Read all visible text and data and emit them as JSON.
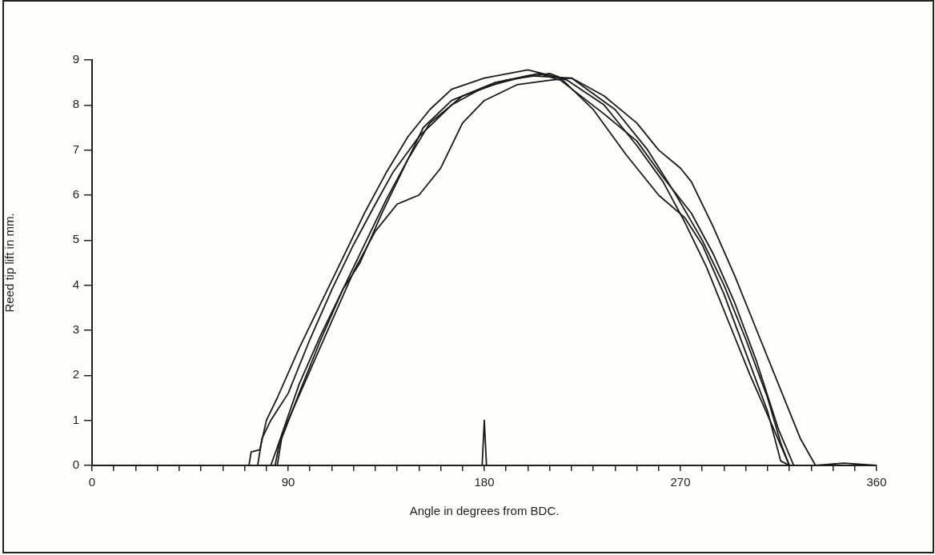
{
  "chart_data": {
    "type": "line",
    "xlabel": "Angle in degrees from BDC.",
    "ylabel": "Reed tip lift in mm.",
    "xlim": [
      0,
      360
    ],
    "ylim": [
      0,
      9
    ],
    "xticks": [
      0,
      {
        "value": 10,
        "label": null
      },
      {
        "value": 20,
        "label": null
      },
      {
        "value": 30,
        "label": null
      },
      {
        "value": 40,
        "label": null
      },
      {
        "value": 50,
        "label": null
      },
      {
        "value": 60,
        "label": null
      },
      {
        "value": 70,
        "label": null
      },
      {
        "value": 80,
        "label": null
      },
      90,
      {
        "value": 100,
        "label": null
      },
      {
        "value": 110,
        "label": null
      },
      {
        "value": 120,
        "label": null
      },
      {
        "value": 130,
        "label": null
      },
      {
        "value": 140,
        "label": null
      },
      {
        "value": 150,
        "label": null
      },
      {
        "value": 160,
        "label": null
      },
      {
        "value": 170,
        "label": null
      },
      180,
      {
        "value": 190,
        "label": null
      },
      {
        "value": 200,
        "label": null
      },
      {
        "value": 210,
        "label": null
      },
      {
        "value": 220,
        "label": null
      },
      {
        "value": 230,
        "label": null
      },
      {
        "value": 240,
        "label": null
      },
      {
        "value": 250,
        "label": null
      },
      {
        "value": 260,
        "label": null
      },
      270,
      {
        "value": 280,
        "label": null
      },
      {
        "value": 290,
        "label": null
      },
      {
        "value": 300,
        "label": null
      },
      {
        "value": 310,
        "label": null
      },
      {
        "value": 320,
        "label": null
      },
      {
        "value": 330,
        "label": null
      },
      {
        "value": 340,
        "label": null
      },
      {
        "value": 350,
        "label": null
      },
      360
    ],
    "yticks": [
      0,
      1,
      2,
      3,
      4,
      5,
      6,
      7,
      8,
      9
    ],
    "grid": false,
    "legend": false,
    "marker": "none",
    "line_style": "solid",
    "series": [
      {
        "color": "#1a1a1a",
        "x": [
          0,
          72,
          73,
          77,
          80,
          85,
          95,
          105,
          115,
          125,
          135,
          145,
          155,
          165,
          180,
          200,
          215,
          230,
          245,
          260,
          272,
          280,
          290,
          300,
          310,
          316,
          320,
          360
        ],
        "values": [
          0,
          0,
          0.3,
          0.35,
          1.0,
          1.5,
          2.6,
          3.6,
          4.6,
          5.6,
          6.5,
          7.3,
          7.9,
          8.35,
          8.6,
          8.78,
          8.6,
          7.9,
          6.9,
          6.0,
          5.5,
          4.9,
          3.8,
          2.5,
          1.2,
          0.1,
          0,
          0
        ]
      },
      {
        "color": "#1a1a1a",
        "x": [
          0,
          84,
          86,
          90,
          100,
          110,
          120,
          130,
          140,
          150,
          160,
          170,
          180,
          195,
          210,
          220,
          240,
          255,
          268,
          280,
          290,
          300,
          310,
          316,
          320,
          360
        ],
        "values": [
          0,
          0,
          0.5,
          1.0,
          2.1,
          3.2,
          4.3,
          5.2,
          5.8,
          6.0,
          6.6,
          7.6,
          8.1,
          8.45,
          8.55,
          8.6,
          7.9,
          7.0,
          6.0,
          5.0,
          4.0,
          2.8,
          1.5,
          0.5,
          0,
          0
        ]
      },
      {
        "color": "#1a1a1a",
        "x": [
          0,
          76,
          78,
          82,
          90,
          100,
          110,
          120,
          130,
          138,
          150,
          165,
          180,
          200,
          220,
          235,
          250,
          260,
          270,
          275,
          285,
          295,
          305,
          315,
          325,
          332,
          345,
          360
        ],
        "values": [
          0,
          0,
          0.6,
          1.0,
          1.6,
          2.8,
          3.9,
          4.9,
          5.8,
          6.5,
          7.3,
          8.0,
          8.4,
          8.65,
          8.6,
          8.2,
          7.6,
          7.0,
          6.6,
          6.3,
          5.3,
          4.2,
          3.0,
          1.8,
          0.6,
          0,
          0.05,
          0
        ]
      },
      {
        "color": "#1a1a1a",
        "x": [
          0,
          85,
          87,
          95,
          105,
          115,
          125,
          135,
          145,
          155,
          170,
          190,
          210,
          218,
          235,
          250,
          262,
          272,
          282,
          292,
          302,
          312,
          320,
          360
        ],
        "values": [
          0,
          0,
          0.6,
          1.6,
          2.8,
          3.9,
          4.9,
          5.9,
          6.8,
          7.6,
          8.2,
          8.55,
          8.7,
          8.55,
          8.0,
          7.1,
          6.3,
          5.4,
          4.4,
          3.2,
          2.0,
          0.9,
          0,
          0
        ]
      },
      {
        "color": "#1a1a1a",
        "x": [
          0,
          82,
          85,
          95,
          105,
          115,
          123,
          133,
          142,
          152,
          165,
          185,
          205,
          215,
          235,
          250,
          262,
          275,
          285,
          295,
          305,
          315,
          322,
          360
        ],
        "values": [
          0,
          0,
          0.4,
          1.8,
          2.9,
          3.9,
          4.5,
          5.6,
          6.5,
          7.5,
          8.1,
          8.5,
          8.7,
          8.55,
          7.8,
          7.2,
          6.4,
          5.6,
          4.7,
          3.6,
          2.3,
          0.8,
          0,
          0
        ]
      },
      {
        "color": "#1a1a1a",
        "x": [
          179,
          180,
          181
        ],
        "values": [
          0,
          1,
          0
        ]
      }
    ]
  }
}
